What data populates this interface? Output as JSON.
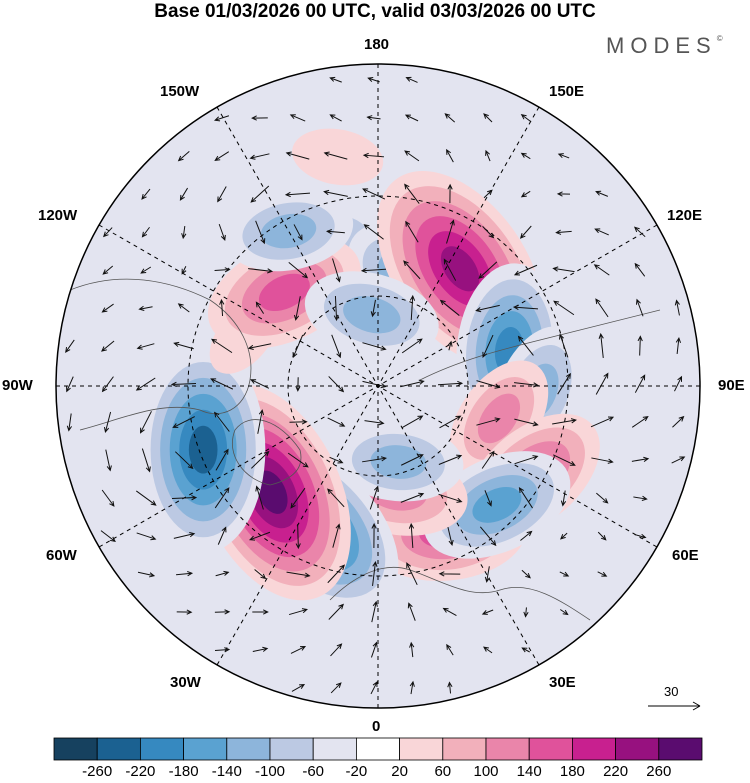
{
  "title": "Base 01/03/2026 00 UTC, valid 03/03/2026 00 UTC",
  "brand": "MODES",
  "brand_mark": "©",
  "longitude_labels": {
    "n180": "180",
    "n150e": "150E",
    "n120e": "120E",
    "n90e": "90E",
    "n60e": "60E",
    "n30e": "30E",
    "n0": "0",
    "n30w": "30W",
    "n60w": "60W",
    "n90w": "90W",
    "n120w": "120W",
    "n150w": "150W"
  },
  "reference_vector": {
    "value": "30"
  },
  "colorbar": {
    "colors": [
      "#16415f",
      "#1b6191",
      "#3689c0",
      "#5aa2d1",
      "#8db5db",
      "#bcc9e3",
      "#e3e4f0",
      "#ffffff",
      "#f9d6d8",
      "#f2b0bb",
      "#ea85aa",
      "#e0529b",
      "#c8208f",
      "#97117f",
      "#5a0c6f"
    ],
    "ticks": [
      "-260",
      "-220",
      "-180",
      "-140",
      "-100",
      "-60",
      "-20",
      "20",
      "60",
      "100",
      "140",
      "180",
      "220",
      "260"
    ]
  },
  "anomaly_centers": [
    {
      "lon": -165,
      "lat": 46,
      "value": -70
    },
    {
      "lon": 160,
      "lat": 60,
      "value": -150
    },
    {
      "lon": 145,
      "lat": 50,
      "value": 250
    },
    {
      "lon": 105,
      "lat": 52,
      "value": -180
    },
    {
      "lon": 88,
      "lat": 45,
      "value": -120
    },
    {
      "lon": 75,
      "lat": 55,
      "value": 110
    },
    {
      "lon": 60,
      "lat": 40,
      "value": 150
    },
    {
      "lon": 25,
      "lat": 45,
      "value": 160
    },
    {
      "lon": 45,
      "lat": 43,
      "value": -150
    },
    {
      "lon": 10,
      "lat": 60,
      "value": 130
    },
    {
      "lon": 15,
      "lat": 68,
      "value": -110
    },
    {
      "lon": -25,
      "lat": 47,
      "value": -230
    },
    {
      "lon": -45,
      "lat": 48,
      "value": 265
    },
    {
      "lon": -70,
      "lat": 38,
      "value": -230
    },
    {
      "lon": -110,
      "lat": 50,
      "value": 40
    },
    {
      "lon": -135,
      "lat": 53,
      "value": 160
    },
    {
      "lon": -150,
      "lat": 40,
      "value": -110
    },
    {
      "lon": -175,
      "lat": 70,
      "value": -120
    },
    {
      "lon": -170,
      "lat": 25,
      "value": 50
    }
  ]
}
